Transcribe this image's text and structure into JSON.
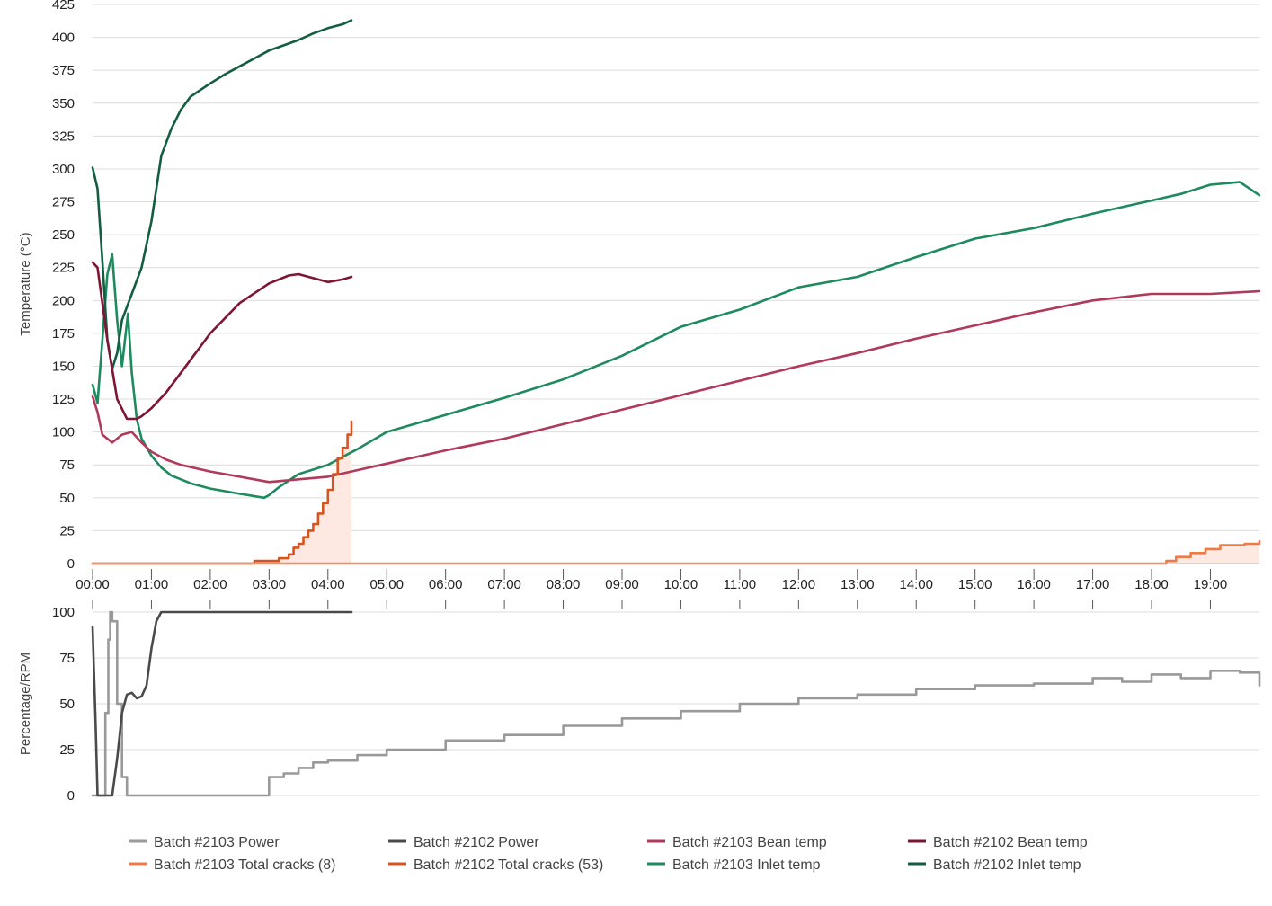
{
  "chart_data": [
    {
      "type": "line",
      "ylabel": "Temperature (°C)",
      "ylim": [
        0,
        425
      ],
      "yticks": [
        "0",
        "25",
        "50",
        "75",
        "100",
        "125",
        "150",
        "175",
        "200",
        "225",
        "250",
        "275",
        "300",
        "325",
        "350",
        "375",
        "400",
        "425"
      ],
      "xlim_seconds": [
        0,
        1190
      ],
      "xticks": [
        "00:00",
        "01:00",
        "02:00",
        "03:00",
        "04:00",
        "05:00",
        "06:00",
        "07:00",
        "08:00",
        "09:00",
        "10:00",
        "11:00",
        "12:00",
        "13:00",
        "14:00",
        "15:00",
        "16:00",
        "17:00",
        "18:00",
        "19:00"
      ],
      "grid": true,
      "series": [
        {
          "name": "Batch #2103 Inlet temp",
          "color": "#1e8a5e",
          "x": [
            "00:00",
            "00:05",
            "00:10",
            "00:15",
            "00:20",
            "00:25",
            "00:30",
            "00:36",
            "00:40",
            "00:45",
            "00:50",
            "01:00",
            "01:10",
            "01:20",
            "01:40",
            "02:00",
            "02:30",
            "02:55",
            "03:00",
            "03:10",
            "03:30",
            "04:00",
            "04:30",
            "05:00",
            "06:00",
            "07:00",
            "08:00",
            "09:00",
            "10:00",
            "11:00",
            "12:00",
            "13:00",
            "14:00",
            "15:00",
            "16:00",
            "17:00",
            "18:00",
            "18:30",
            "19:00",
            "19:30",
            "19:50"
          ],
          "y": [
            136,
            122,
            170,
            220,
            235,
            185,
            150,
            190,
            145,
            110,
            95,
            82,
            73,
            67,
            61,
            57,
            53,
            50,
            52,
            58,
            68,
            75,
            87,
            100,
            113,
            126,
            140,
            158,
            180,
            193,
            210,
            218,
            233,
            247,
            255,
            266,
            276,
            281,
            288,
            290,
            280
          ]
        },
        {
          "name": "Batch #2103 Bean temp",
          "color": "#b03a5b",
          "x": [
            "00:00",
            "00:05",
            "00:10",
            "00:20",
            "00:30",
            "00:40",
            "00:50",
            "01:00",
            "01:15",
            "01:30",
            "02:00",
            "02:30",
            "03:00",
            "03:30",
            "04:00",
            "04:30",
            "05:00",
            "06:00",
            "07:00",
            "08:00",
            "09:00",
            "10:00",
            "11:00",
            "12:00",
            "13:00",
            "14:00",
            "15:00",
            "16:00",
            "17:00",
            "18:00",
            "19:00",
            "19:50"
          ],
          "y": [
            127,
            115,
            98,
            92,
            98,
            100,
            92,
            85,
            79,
            75,
            70,
            66,
            62,
            64,
            66,
            71,
            76,
            86,
            95,
            106,
            117,
            128,
            139,
            150,
            160,
            171,
            181,
            191,
            200,
            205,
            205,
            207
          ]
        },
        {
          "name": "Batch #2102 Inlet temp",
          "color": "#135e41",
          "x": [
            "00:00",
            "00:05",
            "00:10",
            "00:15",
            "00:20",
            "00:25",
            "00:30",
            "00:40",
            "00:50",
            "01:00",
            "01:10",
            "01:20",
            "01:30",
            "01:40",
            "01:50",
            "02:00",
            "02:15",
            "02:30",
            "02:45",
            "03:00",
            "03:15",
            "03:30",
            "03:45",
            "04:00",
            "04:15",
            "04:24"
          ],
          "y": [
            301,
            285,
            230,
            170,
            148,
            160,
            185,
            205,
            225,
            260,
            310,
            330,
            345,
            355,
            360,
            365,
            372,
            378,
            384,
            390,
            394,
            398,
            403,
            407,
            410,
            413
          ]
        },
        {
          "name": "Batch #2102 Bean temp",
          "color": "#7e1633",
          "x": [
            "00:00",
            "00:05",
            "00:15",
            "00:25",
            "00:35",
            "00:45",
            "00:50",
            "01:00",
            "01:15",
            "01:30",
            "02:00",
            "02:30",
            "03:00",
            "03:20",
            "03:30",
            "03:45",
            "04:00",
            "04:15",
            "04:24"
          ],
          "y": [
            229,
            225,
            170,
            125,
            110,
            110,
            112,
            118,
            130,
            145,
            175,
            198,
            213,
            219,
            220,
            217,
            214,
            216,
            218
          ]
        },
        {
          "name": "Batch #2102 Total cracks (53)",
          "color": "#d9531e",
          "step": true,
          "fill": "#fde9e1",
          "x": [
            "00:00",
            "02:45",
            "03:10",
            "03:20",
            "03:25",
            "03:30",
            "03:35",
            "03:40",
            "03:45",
            "03:50",
            "03:55",
            "04:00",
            "04:05",
            "04:10",
            "04:15",
            "04:20",
            "04:24"
          ],
          "y": [
            0,
            2,
            4,
            7,
            12,
            15,
            20,
            25,
            30,
            38,
            46,
            56,
            68,
            80,
            88,
            98,
            108
          ]
        },
        {
          "name": "Batch #2103 Total cracks (8)",
          "color": "#f07a45",
          "step": true,
          "fill": "#fde9e1",
          "x": [
            "00:00",
            "18:15",
            "18:25",
            "18:40",
            "18:55",
            "19:10",
            "19:35",
            "19:50"
          ],
          "y": [
            0,
            2,
            5,
            8,
            11,
            14,
            15,
            17
          ]
        }
      ]
    },
    {
      "type": "line",
      "ylabel": "Percentage/RPM",
      "ylim": [
        0,
        100
      ],
      "yticks": [
        "0",
        "25",
        "50",
        "75",
        "100"
      ],
      "xlim_seconds": [
        0,
        1190
      ],
      "grid": true,
      "series": [
        {
          "name": "Batch #2103 Power",
          "color": "#999999",
          "step": true,
          "x": [
            "00:00",
            "00:10",
            "00:13",
            "00:16",
            "00:18",
            "00:20",
            "00:25",
            "00:30",
            "00:35",
            "00:40",
            "00:45",
            "02:55",
            "03:00",
            "03:15",
            "03:30",
            "03:45",
            "04:00",
            "04:30",
            "05:00",
            "06:00",
            "07:00",
            "08:00",
            "09:00",
            "10:00",
            "11:00",
            "12:00",
            "13:00",
            "14:00",
            "15:00",
            "16:00",
            "17:00",
            "17:30",
            "18:00",
            "18:30",
            "19:00",
            "19:30",
            "19:50"
          ],
          "y": [
            0,
            0,
            45,
            85,
            100,
            95,
            50,
            10,
            0,
            0,
            0,
            0,
            10,
            12,
            15,
            18,
            19,
            22,
            25,
            30,
            33,
            38,
            42,
            46,
            50,
            53,
            55,
            58,
            60,
            61,
            64,
            62,
            66,
            64,
            68,
            67,
            60
          ]
        },
        {
          "name": "Batch #2102 Power",
          "color": "#4a4a4a",
          "x": [
            "00:00",
            "00:03",
            "00:05",
            "00:10",
            "00:20",
            "00:25",
            "00:30",
            "00:35",
            "00:40",
            "00:45",
            "00:50",
            "00:55",
            "01:00",
            "01:05",
            "01:10",
            "04:24"
          ],
          "y": [
            92,
            40,
            0,
            0,
            0,
            20,
            45,
            55,
            56,
            53,
            54,
            60,
            80,
            95,
            100,
            100
          ]
        }
      ]
    }
  ],
  "legend": {
    "placement": "bottom",
    "items": [
      {
        "label": "Batch #2103 Power",
        "color": "#999999"
      },
      {
        "label": "Batch #2102 Power",
        "color": "#4a4a4a"
      },
      {
        "label": "Batch #2103 Bean temp",
        "color": "#b03a5b"
      },
      {
        "label": "Batch #2102 Bean temp",
        "color": "#7e1633"
      },
      {
        "label": "Batch #2103 Total cracks (8)",
        "color": "#f07a45"
      },
      {
        "label": "Batch #2102 Total cracks (53)",
        "color": "#d9531e"
      },
      {
        "label": "Batch #2103 Inlet temp",
        "color": "#1e8a5e"
      },
      {
        "label": "Batch #2102 Inlet temp",
        "color": "#135e41"
      }
    ]
  }
}
